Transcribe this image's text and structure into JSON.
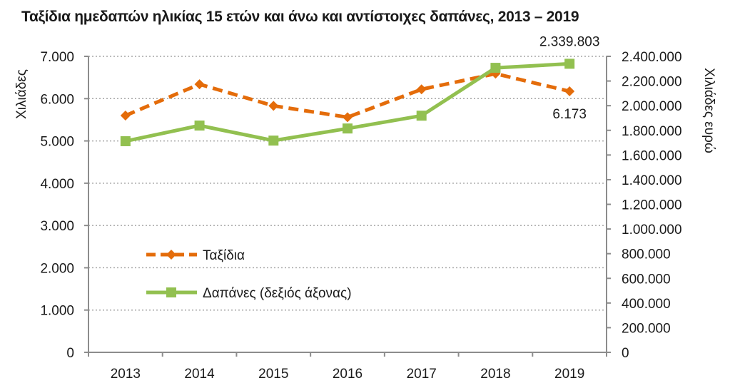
{
  "chart_data": {
    "type": "line",
    "title": "Ταξίδια ημεδαπών ηλικίας 15 ετών και άνω και αντίστοιχες δαπάνες, 2013 – 2019",
    "categories": [
      "2013",
      "2014",
      "2015",
      "2016",
      "2017",
      "2018",
      "2019"
    ],
    "xlabel": "",
    "ylabel_left": "Χιλιάδες",
    "ylabel_right": "Χιλιάδες ευρώ",
    "ylim_left": [
      0,
      7000
    ],
    "ylim_right": [
      0,
      2400000
    ],
    "yticks_left": [
      0,
      1000,
      2000,
      3000,
      4000,
      5000,
      6000,
      7000
    ],
    "yticks_left_labels": [
      "0",
      "1.000",
      "2.000",
      "3.000",
      "4.000",
      "5.000",
      "6.000",
      "7.000"
    ],
    "yticks_right": [
      0,
      200000,
      400000,
      600000,
      800000,
      1000000,
      1200000,
      1400000,
      1600000,
      1800000,
      2000000,
      2200000,
      2400000
    ],
    "yticks_right_labels": [
      "0",
      "200.000",
      "400.000",
      "600.000",
      "800.000",
      "1.000.000",
      "1.200.000",
      "1.400.000",
      "1.600.000",
      "1.800.000",
      "2.000.000",
      "2.200.000",
      "2.400.000"
    ],
    "grid": "horizontal dotted",
    "legend_position": "center-left inside plot",
    "series": [
      {
        "name": "Ταξίδια",
        "axis": "left",
        "color": "#E46C0A",
        "style": "dashed",
        "marker": "diamond",
        "values": [
          5600,
          6340,
          5830,
          5560,
          6220,
          6590,
          6173
        ]
      },
      {
        "name": "Δαπάνες (δεξιός άξονας)",
        "axis": "right",
        "color": "#92C050",
        "style": "solid",
        "marker": "square",
        "values": [
          1712000,
          1839000,
          1717000,
          1815000,
          1919000,
          2307000,
          2339803
        ]
      }
    ],
    "annotations": [
      {
        "series": 0,
        "index": 6,
        "text": "6.173"
      },
      {
        "series": 1,
        "index": 6,
        "text": "2.339.803"
      }
    ]
  }
}
